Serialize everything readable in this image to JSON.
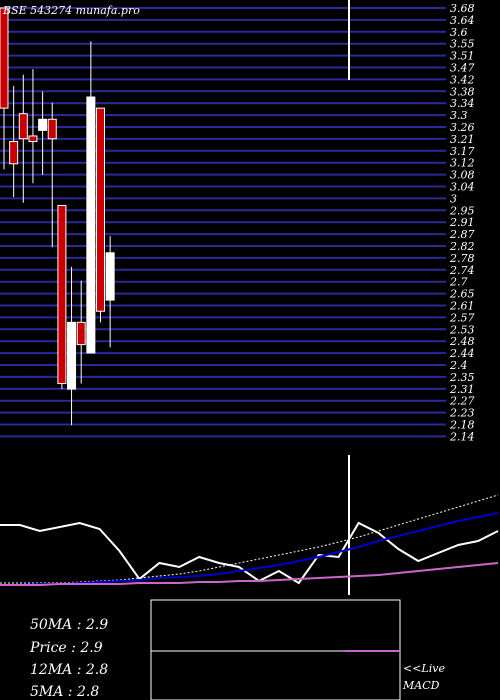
{
  "chart_data": [
    {
      "type": "candlestick",
      "title": "BSE 543274  munafa.pro",
      "y_ticks": [
        "3.68",
        "3.64",
        "3.6",
        "3.55",
        "3.51",
        "3.47",
        "3.42",
        "3.38",
        "3.34",
        "3.3",
        "3.26",
        "3.21",
        "3.17",
        "3.12",
        "3.08",
        "3.04",
        "3",
        "2.95",
        "2.91",
        "2.87",
        "2.82",
        "2.78",
        "2.74",
        "2.7",
        "2.65",
        "2.61",
        "2.57",
        "2.53",
        "2.48",
        "2.44",
        "2.4",
        "2.35",
        "2.31",
        "2.27",
        "2.23",
        "2.18",
        "2.14"
      ],
      "ylim": [
        2.14,
        3.68
      ],
      "candles": [
        {
          "open": 3.68,
          "close": 3.32,
          "high": 3.68,
          "low": 3.1,
          "color": "red"
        },
        {
          "open": 3.2,
          "close": 3.12,
          "high": 3.4,
          "low": 3.0,
          "color": "red"
        },
        {
          "open": 3.3,
          "close": 3.21,
          "high": 3.44,
          "low": 2.98,
          "color": "red"
        },
        {
          "open": 3.22,
          "close": 3.2,
          "high": 3.46,
          "low": 3.05,
          "color": "red"
        },
        {
          "open": 3.24,
          "close": 3.28,
          "high": 3.38,
          "low": 3.08,
          "color": "white"
        },
        {
          "open": 3.28,
          "close": 3.21,
          "high": 3.34,
          "low": 2.82,
          "color": "red"
        },
        {
          "open": 2.97,
          "close": 2.33,
          "high": 2.97,
          "low": 2.31,
          "color": "red"
        },
        {
          "open": 2.31,
          "close": 2.55,
          "high": 2.75,
          "low": 2.18,
          "color": "white"
        },
        {
          "open": 2.55,
          "close": 2.47,
          "high": 2.7,
          "low": 2.33,
          "color": "red"
        },
        {
          "open": 2.44,
          "close": 3.36,
          "high": 3.56,
          "low": 2.44,
          "color": "white"
        },
        {
          "open": 3.32,
          "close": 2.59,
          "high": 3.32,
          "low": 2.55,
          "color": "red"
        },
        {
          "open": 2.63,
          "close": 2.8,
          "high": 2.86,
          "low": 2.46,
          "color": "white"
        }
      ]
    },
    {
      "type": "line",
      "title": "MACD",
      "series": [
        {
          "color": "#ffffff",
          "values": [
            60,
            60,
            54,
            58,
            62,
            56,
            34,
            6,
            22,
            18,
            28,
            22,
            18,
            4,
            14,
            2,
            30,
            28,
            62,
            52,
            36,
            24,
            32,
            40,
            44,
            54
          ]
        },
        {
          "color": "#ffffff",
          "dashed": true,
          "values": [
            2,
            2,
            2,
            2,
            3,
            4,
            5,
            7,
            9,
            11,
            14,
            18,
            22,
            26,
            30,
            34,
            38,
            43,
            48,
            54,
            60,
            66,
            72,
            78,
            84,
            90
          ]
        },
        {
          "color": "#0000cc",
          "values": [
            0,
            0,
            1,
            1,
            2,
            3,
            4,
            5,
            7,
            8,
            9,
            11,
            14,
            17,
            20,
            24,
            28,
            33,
            38,
            44,
            49,
            54,
            59,
            64,
            68,
            72
          ]
        },
        {
          "color": "#cc66cc",
          "values": [
            0,
            0,
            0,
            1,
            1,
            1,
            1,
            2,
            2,
            2,
            3,
            3,
            4,
            4,
            5,
            6,
            7,
            8,
            9,
            10,
            12,
            14,
            16,
            18,
            20,
            22
          ]
        }
      ]
    }
  ],
  "stats": {
    "ma50": "50MA : 2.9",
    "price": "Price   : 2.9",
    "ma12": "12MA : 2.8",
    "ma5": "5MA : 2.8"
  },
  "live": {
    "line1": "<<Live",
    "line2": "MACD"
  }
}
